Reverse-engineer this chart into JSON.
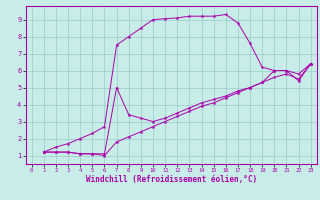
{
  "xlabel": "Windchill (Refroidissement éolien,°C)",
  "bg_color": "#c8ece8",
  "line_color": "#aa00aa",
  "grid_color": "#99cccc",
  "xlim": [
    -0.5,
    23.5
  ],
  "ylim": [
    0.5,
    9.8
  ],
  "xticks": [
    0,
    1,
    2,
    3,
    4,
    5,
    6,
    7,
    8,
    9,
    10,
    11,
    12,
    13,
    14,
    15,
    16,
    17,
    18,
    19,
    20,
    21,
    22,
    23
  ],
  "yticks": [
    1,
    2,
    3,
    4,
    5,
    6,
    7,
    8,
    9
  ],
  "series": [
    {
      "x": [
        1,
        2,
        3,
        4,
        5,
        6,
        7,
        8,
        9,
        10,
        11,
        12,
        13,
        14,
        15,
        16,
        17,
        18,
        19,
        20,
        21,
        22,
        23
      ],
      "y": [
        1.2,
        1.5,
        1.7,
        2.0,
        2.3,
        2.7,
        7.5,
        8.0,
        8.5,
        9.0,
        9.05,
        9.1,
        9.2,
        9.2,
        9.2,
        9.3,
        8.8,
        7.6,
        6.2,
        6.0,
        6.0,
        5.8,
        6.4
      ]
    },
    {
      "x": [
        1,
        2,
        3,
        4,
        5,
        6,
        7,
        8,
        9,
        10,
        11,
        12,
        13,
        14,
        15,
        16,
        17,
        18,
        19,
        20,
        21,
        22,
        23
      ],
      "y": [
        1.2,
        1.2,
        1.2,
        1.1,
        1.1,
        1.1,
        5.0,
        3.4,
        3.2,
        3.0,
        3.2,
        3.5,
        3.8,
        4.1,
        4.3,
        4.5,
        4.8,
        5.0,
        5.3,
        6.0,
        6.0,
        5.4,
        6.4
      ]
    },
    {
      "x": [
        1,
        2,
        3,
        4,
        5,
        6,
        7,
        8,
        9,
        10,
        11,
        12,
        13,
        14,
        15,
        16,
        17,
        18,
        19,
        20,
        21,
        22,
        23
      ],
      "y": [
        1.2,
        1.2,
        1.2,
        1.1,
        1.1,
        1.0,
        1.8,
        2.1,
        2.4,
        2.7,
        3.0,
        3.3,
        3.6,
        3.9,
        4.1,
        4.4,
        4.7,
        5.0,
        5.3,
        5.6,
        5.8,
        5.5,
        6.4
      ]
    }
  ]
}
